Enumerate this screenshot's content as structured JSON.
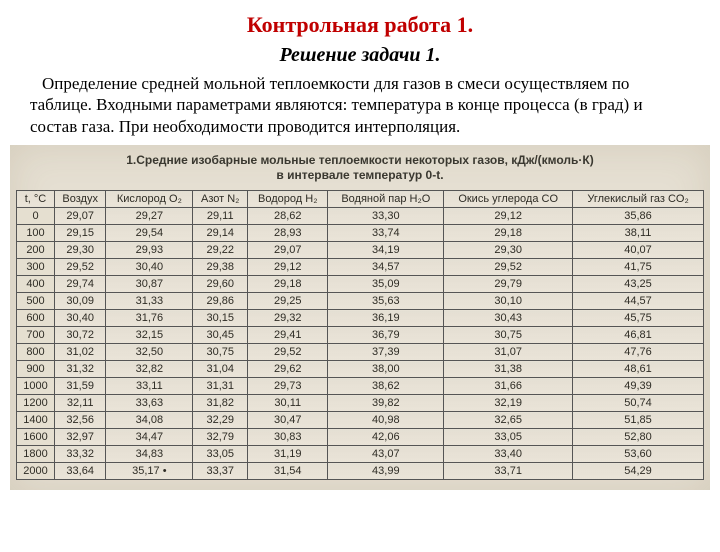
{
  "title": "Контрольная работа 1.",
  "subtitle": "Решение задачи 1.",
  "body": "Определение средней мольной теплоемкости для газов в смеси осуществляем по таблице. Входными параметрами являются: температура в конце процесса (в град) и состав газа. При необходимости проводится интерполяция.",
  "table": {
    "title_line1": "1.Средние изобарные мольные теплоемкости некоторых газов, кДж/(кмоль·К)",
    "title_line2": "в интервале температур 0-t.",
    "columns": [
      "t, °C",
      "Воздух",
      "Кислород O₂",
      "Азот N₂",
      "Водород H₂",
      "Водяной пар H₂O",
      "Окись углерода CO",
      "Углекислый газ CO₂"
    ],
    "rows": [
      [
        "0",
        "29,07",
        "29,27",
        "29,11",
        "28,62",
        "33,30",
        "29,12",
        "35,86"
      ],
      [
        "100",
        "29,15",
        "29,54",
        "29,14",
        "28,93",
        "33,74",
        "29,18",
        "38,11"
      ],
      [
        "200",
        "29,30",
        "29,93",
        "29,22",
        "29,07",
        "34,19",
        "29,30",
        "40,07"
      ],
      [
        "300",
        "29,52",
        "30,40",
        "29,38",
        "29,12",
        "34,57",
        "29,52",
        "41,75"
      ],
      [
        "400",
        "29,74",
        "30,87",
        "29,60",
        "29,18",
        "35,09",
        "29,79",
        "43,25"
      ],
      [
        "500",
        "30,09",
        "31,33",
        "29,86",
        "29,25",
        "35,63",
        "30,10",
        "44,57"
      ],
      [
        "600",
        "30,40",
        "31,76",
        "30,15",
        "29,32",
        "36,19",
        "30,43",
        "45,75"
      ],
      [
        "700",
        "30,72",
        "32,15",
        "30,45",
        "29,41",
        "36,79",
        "30,75",
        "46,81"
      ],
      [
        "800",
        "31,02",
        "32,50",
        "30,75",
        "29,52",
        "37,39",
        "31,07",
        "47,76"
      ],
      [
        "900",
        "31,32",
        "32,82",
        "31,04",
        "29,62",
        "38,00",
        "31,38",
        "48,61"
      ],
      [
        "1000",
        "31,59",
        "33,11",
        "31,31",
        "29,73",
        "38,62",
        "31,66",
        "49,39"
      ],
      [
        "1200",
        "32,11",
        "33,63",
        "31,82",
        "30,11",
        "39,82",
        "32,19",
        "50,74"
      ],
      [
        "1400",
        "32,56",
        "34,08",
        "32,29",
        "30,47",
        "40,98",
        "32,65",
        "51,85"
      ],
      [
        "1600",
        "32,97",
        "34,47",
        "32,79",
        "30,83",
        "42,06",
        "33,05",
        "52,80"
      ],
      [
        "1800",
        "33,32",
        "34,83",
        "33,05",
        "31,19",
        "43,07",
        "33,40",
        "53,60"
      ],
      [
        "2000",
        "33,64",
        "35,17 •",
        "33,37",
        "31,54",
        "43,99",
        "33,71",
        "54,29"
      ]
    ]
  },
  "colors": {
    "title": "#c00000",
    "paper_bg": "#e5dfd2",
    "border": "#555555",
    "text": "#2e2c25"
  }
}
